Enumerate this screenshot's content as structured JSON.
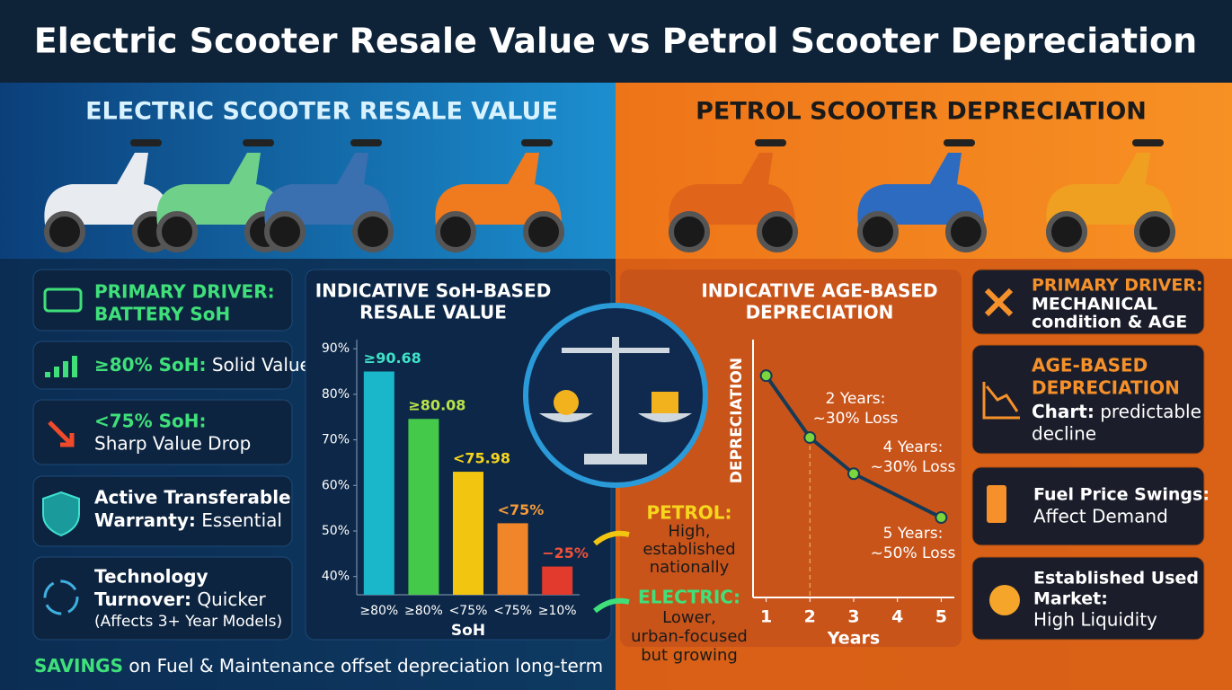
{
  "title": "Electric Scooter Resale Value vs Petrol Scooter Depreciation",
  "electric": {
    "heading": "ELECTRIC SCOOTER RESALE VALUE",
    "cards": [
      [
        [
          "PRIMARY DRIVER:"
        ],
        [
          "BATTERY SoH"
        ]
      ],
      [
        [
          "≥80% SoH:",
          " Solid Value"
        ]
      ],
      [
        [
          "<75% SoH:"
        ],
        [
          "Sharp Value Drop"
        ]
      ],
      [
        [
          "Active Transferable"
        ],
        [
          "Warranty:",
          " Essential"
        ]
      ],
      [
        [
          "Technology"
        ],
        [
          "Turnover:",
          " Quicker"
        ],
        [
          "(Affects 3+ Year Models)"
        ]
      ]
    ],
    "savings": [
      "SAVINGS",
      " on Fuel & Maintenance offset depreciation long-term"
    ]
  },
  "petrol": {
    "heading": "PETROL SCOOTER DEPRECIATION",
    "cards": [
      [
        [
          "PRIMARY DRIVER:"
        ],
        [
          "MECHANICAL"
        ],
        [
          "condition & AGE"
        ]
      ],
      [
        [
          "AGE-BASED"
        ],
        [
          "DEPRECIATION"
        ],
        [
          "Chart:",
          " predictable"
        ],
        [
          "decline"
        ]
      ],
      [
        [
          "Fuel Price Swings:"
        ],
        [
          "Affect Demand"
        ]
      ],
      [
        [
          "Established Used"
        ],
        [
          "Market:"
        ],
        [
          "High Liquidity"
        ]
      ]
    ]
  },
  "market_notes": {
    "petrol": [
      "PETROL:",
      "High,",
      "established",
      "nationally"
    ],
    "electric": [
      "ELECTRIC:",
      "Lower,",
      "urban-focused",
      "but growing"
    ]
  },
  "chart_data": [
    {
      "type": "bar",
      "title": [
        "INDICATIVE SoH-BASED",
        "RESALE VALUE"
      ],
      "x_label": "SoH",
      "categories": [
        "≥80%",
        "≥80%",
        "<75%",
        "<75%",
        "≥10%"
      ],
      "values": [
        85,
        74.6,
        63,
        51.7,
        42.2
      ],
      "bar_annotations": [
        "≥90.68",
        "≥80.08",
        "<75.98",
        "<75%",
        "−25%"
      ],
      "colors": [
        "#19b7c9",
        "#45c94a",
        "#f2c511",
        "#f0852a",
        "#e23a2c"
      ],
      "annotation_colors": [
        "#3fe0c8",
        "#b9e24a",
        "#f7d61e",
        "#f59a3a",
        "#f0513a"
      ],
      "ylim": [
        36,
        92
      ],
      "yticks": [
        {
          "value": 40,
          "label": "40%"
        },
        {
          "value": 50,
          "label": "50%"
        },
        {
          "value": 60,
          "label": "60%"
        },
        {
          "value": 70,
          "label": "70%"
        },
        {
          "value": 80,
          "label": "80%"
        },
        {
          "value": 90,
          "label": "90%"
        }
      ]
    },
    {
      "type": "line",
      "title": [
        "INDICATIVE AGE-BASED",
        "DEPRECIATION"
      ],
      "x_label": "Years",
      "y_label": "DEPRECIATION",
      "x": [
        1,
        2,
        3,
        5
      ],
      "values": [
        86,
        62,
        48,
        31
      ],
      "color": "#163a56",
      "marker_color": "#7ad63c",
      "xlim": [
        0.7,
        5.3
      ],
      "xticks": [
        1,
        2,
        3,
        4,
        5
      ],
      "ylim": [
        0,
        100
      ],
      "annotations": [
        [
          "2 Years:",
          "~30% Loss"
        ],
        [
          "4 Years:",
          "~30% Loss"
        ],
        [
          "5 Years:",
          "~50% Loss"
        ]
      ]
    }
  ]
}
